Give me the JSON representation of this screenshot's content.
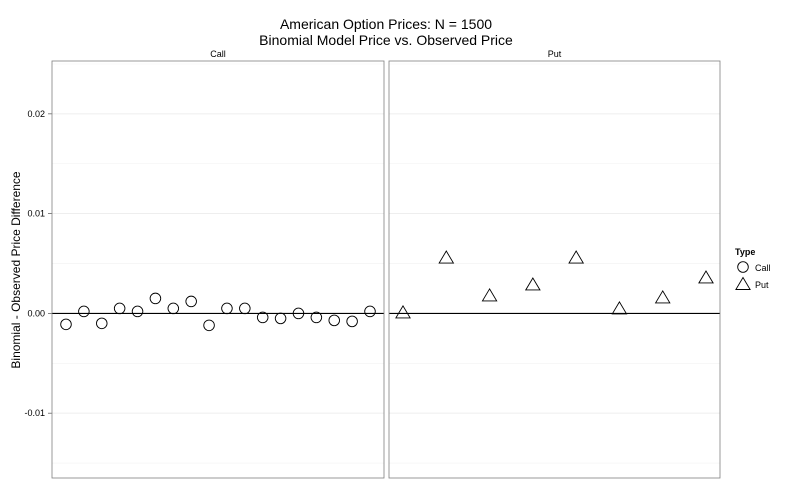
{
  "chart_data": {
    "type": "scatter",
    "title": "American Option Prices: N = 1500",
    "subtitle": "Binomial Model Price vs. Observed Price",
    "xlabel": "",
    "ylabel": "Binomial - Observed Price Difference",
    "ylim": [
      -0.0165,
      0.0253
    ],
    "yticks": [
      -0.01,
      0.0,
      0.01,
      0.02
    ],
    "ytick_labels": [
      "-0.01",
      "0.00",
      "0.01",
      "0.02"
    ],
    "grid": true,
    "reference_line_y": 0,
    "legend": {
      "title": "Type",
      "position": "right"
    },
    "panels": [
      {
        "label": "Call",
        "series": {
          "name": "Call",
          "marker": "circle",
          "y": [
            -0.0011,
            0.0002,
            -0.001,
            0.0005,
            0.0002,
            0.0015,
            0.0005,
            0.0012,
            -0.0012,
            0.0005,
            0.0005,
            -0.0004,
            -0.0005,
            0.0,
            -0.0004,
            -0.0007,
            -0.0008,
            0.0002
          ]
        }
      },
      {
        "label": "Put",
        "series": {
          "name": "Put",
          "marker": "triangle",
          "y": [
            0.0,
            0.0055,
            0.0017,
            0.0028,
            0.0055,
            0.0004,
            0.0015,
            0.0035
          ]
        }
      }
    ]
  }
}
